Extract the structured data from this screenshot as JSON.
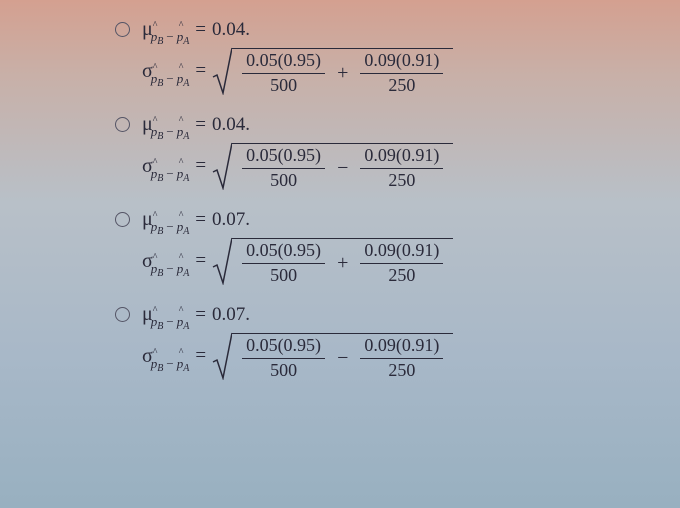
{
  "colors": {
    "text": "#2a2a3a",
    "radio_border": "#556677"
  },
  "symbols": {
    "mu": "μ",
    "sigma": "σ",
    "phat": "p",
    "hat": "^",
    "sub_b": "B",
    "sub_a": "A",
    "minus": "−",
    "plus": "+",
    "eq": "=",
    "sqrt_label": "√"
  },
  "options": [
    {
      "mu_value": "0.04",
      "operator": "+",
      "frac1_num": "0.05(0.95)",
      "frac1_den": "500",
      "frac2_num": "0.09(0.91)",
      "frac2_den": "250",
      "period": "."
    },
    {
      "mu_value": "0.04",
      "operator": "−",
      "frac1_num": "0.05(0.95)",
      "frac1_den": "500",
      "frac2_num": "0.09(0.91)",
      "frac2_den": "250",
      "period": "."
    },
    {
      "mu_value": "0.07",
      "operator": "+",
      "frac1_num": "0.05(0.95)",
      "frac1_den": "500",
      "frac2_num": "0.09(0.91)",
      "frac2_den": "250",
      "period": "."
    },
    {
      "mu_value": "0.07",
      "operator": "−",
      "frac1_num": "0.05(0.95)",
      "frac1_den": "500",
      "frac2_num": "0.09(0.91)",
      "frac2_den": "250",
      "period": "."
    }
  ]
}
